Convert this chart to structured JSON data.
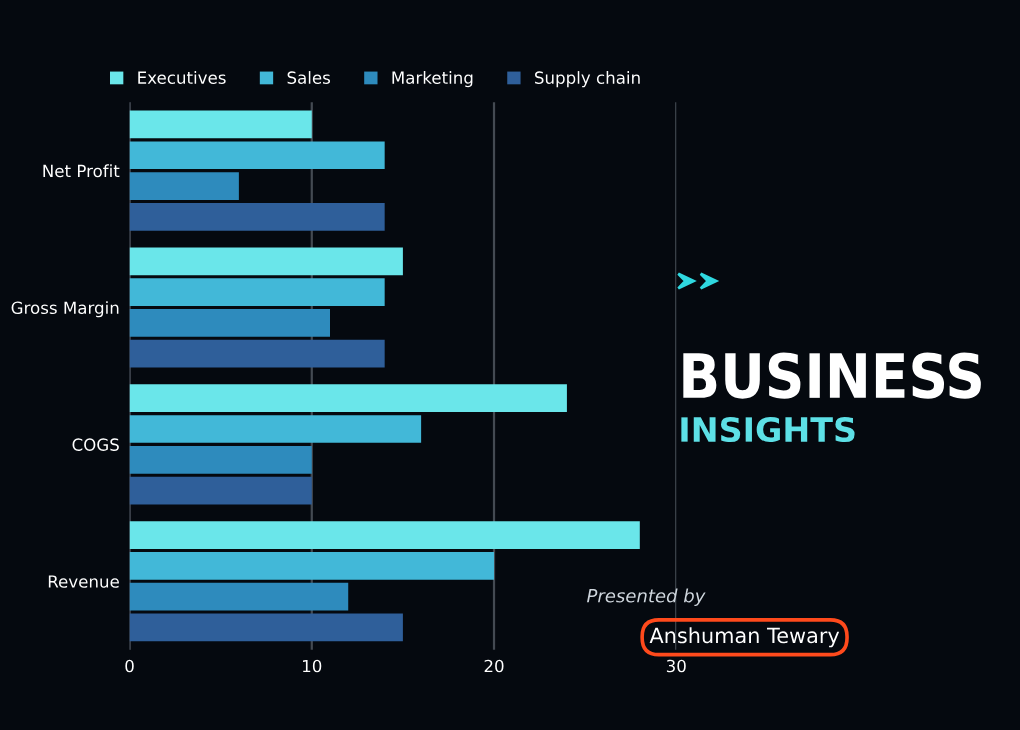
{
  "chart_data": {
    "type": "bar",
    "orientation": "horizontal",
    "title": "BUSINESS",
    "subtitle": "INSIGHTS",
    "annotations": [
      "Presented by",
      "Anshuman Tewary"
    ],
    "categories": [
      "Net Profit",
      "Gross Margin",
      "COGS",
      "Revenue"
    ],
    "series": [
      {
        "name": "Executives",
        "color": "#6ae6ea",
        "values": [
          10,
          15,
          24,
          28
        ]
      },
      {
        "name": "Sales",
        "color": "#42b8d8",
        "values": [
          14,
          14,
          16,
          20
        ]
      },
      {
        "name": "Marketing",
        "color": "#2e8bbd",
        "values": [
          6,
          11,
          10,
          12
        ]
      },
      {
        "name": "Supply chain",
        "color": "#2f5f9a",
        "values": [
          14,
          14,
          10,
          15
        ]
      }
    ],
    "xlim": [
      0,
      30
    ],
    "xticks": [
      0,
      10,
      20,
      30
    ],
    "grid": "x",
    "legend": "top"
  }
}
